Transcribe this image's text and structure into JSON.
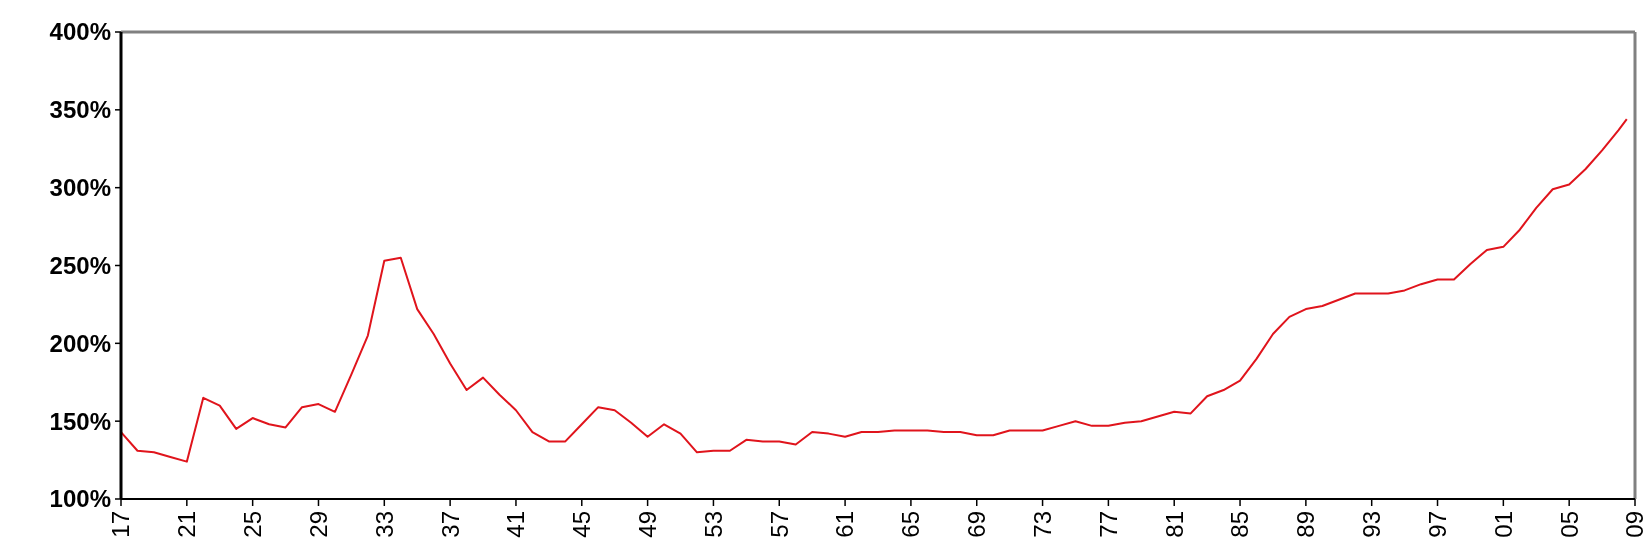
{
  "chart_data": {
    "type": "line",
    "x": [
      1917,
      1918,
      1919,
      1920,
      1921,
      1922,
      1923,
      1924,
      1925,
      1926,
      1927,
      1928,
      1929,
      1930,
      1931,
      1932,
      1933,
      1934,
      1935,
      1936,
      1937,
      1938,
      1939,
      1940,
      1941,
      1942,
      1943,
      1944,
      1945,
      1946,
      1947,
      1948,
      1949,
      1950,
      1951,
      1952,
      1953,
      1954,
      1955,
      1956,
      1957,
      1958,
      1959,
      1960,
      1961,
      1962,
      1963,
      1964,
      1965,
      1966,
      1967,
      1968,
      1969,
      1970,
      1971,
      1972,
      1973,
      1974,
      1975,
      1976,
      1977,
      1978,
      1979,
      1980,
      1981,
      1982,
      1983,
      1984,
      1985,
      1986,
      1987,
      1988,
      1989,
      1990,
      1991,
      1992,
      1993,
      1994,
      1995,
      1996,
      1997,
      1998,
      1999,
      2000,
      2001,
      2002,
      2003,
      2004,
      2005,
      2006,
      2007,
      2008,
      2008.5
    ],
    "series": [
      {
        "color": "#e0141c",
        "values": [
          143,
          131,
          130,
          127,
          124,
          165,
          160,
          145,
          152,
          148,
          146,
          159,
          161,
          156,
          180,
          205,
          253,
          255,
          222,
          206,
          187,
          170,
          178,
          167,
          157,
          143,
          137,
          137,
          148,
          159,
          157,
          149,
          140,
          148,
          142,
          130,
          131,
          131,
          138,
          137,
          137,
          135,
          143,
          142,
          140,
          143,
          143,
          144,
          144,
          144,
          143,
          143,
          141,
          141,
          144,
          144,
          144,
          147,
          150,
          147,
          147,
          149,
          150,
          153,
          156,
          155,
          166,
          170,
          176,
          190,
          206,
          217,
          222,
          224,
          228,
          232,
          232,
          232,
          234,
          238,
          241,
          241,
          251,
          260,
          262,
          273,
          287,
          299,
          302,
          312,
          324,
          337,
          344
        ]
      }
    ],
    "xlim": [
      1917,
      2009
    ],
    "xticks": [
      {
        "value": 1917,
        "label": "17"
      },
      {
        "value": 1921,
        "label": "21"
      },
      {
        "value": 1925,
        "label": "25"
      },
      {
        "value": 1929,
        "label": "29"
      },
      {
        "value": 1933,
        "label": "33"
      },
      {
        "value": 1937,
        "label": "37"
      },
      {
        "value": 1941,
        "label": "41"
      },
      {
        "value": 1945,
        "label": "45"
      },
      {
        "value": 1949,
        "label": "49"
      },
      {
        "value": 1953,
        "label": "53"
      },
      {
        "value": 1957,
        "label": "57"
      },
      {
        "value": 1961,
        "label": "61"
      },
      {
        "value": 1965,
        "label": "65"
      },
      {
        "value": 1969,
        "label": "69"
      },
      {
        "value": 1973,
        "label": "73"
      },
      {
        "value": 1977,
        "label": "77"
      },
      {
        "value": 1981,
        "label": "81"
      },
      {
        "value": 1985,
        "label": "85"
      },
      {
        "value": 1989,
        "label": "89"
      },
      {
        "value": 1993,
        "label": "93"
      },
      {
        "value": 1997,
        "label": "97"
      },
      {
        "value": 2001,
        "label": "01"
      },
      {
        "value": 2005,
        "label": "05"
      },
      {
        "value": 2009,
        "label": "09"
      }
    ],
    "ylim": [
      100,
      400
    ],
    "yticks": [
      {
        "value": 100,
        "label": "100%"
      },
      {
        "value": 150,
        "label": "150%"
      },
      {
        "value": 200,
        "label": "200%"
      },
      {
        "value": 250,
        "label": "250%"
      },
      {
        "value": 300,
        "label": "300%"
      },
      {
        "value": 350,
        "label": "350%"
      },
      {
        "value": 400,
        "label": "400%"
      }
    ],
    "grid": false,
    "marker": "none",
    "line_style": "solid"
  }
}
